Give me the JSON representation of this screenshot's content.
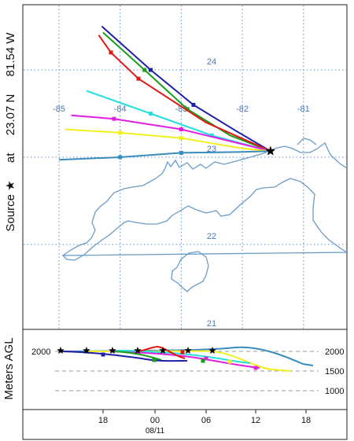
{
  "source": {
    "prefix": "Source",
    "star_glyph": "★",
    "at_word": "at",
    "lat": "23.07 N",
    "lon": "81.54 W"
  },
  "map": {
    "lon_labels": [
      "-85",
      "-84",
      "-83",
      "-82",
      "-81"
    ],
    "lat_labels": [
      "24",
      "23",
      "22",
      "21"
    ],
    "lon_values": [
      -85,
      -84,
      -83,
      -82,
      -81
    ],
    "lat_values": [
      24,
      23,
      22,
      21
    ],
    "grid_color": "#5b8fd0",
    "coast_color": "#6a9cc8"
  },
  "vertical_panel": {
    "ylabel": "Meters AGL",
    "levels": [
      "2000",
      "1500",
      "1000"
    ],
    "left_level": "2000",
    "time_ticks": [
      "18",
      "00",
      "06",
      "12",
      "18"
    ],
    "date_label": "08/11"
  },
  "trajectories": [
    {
      "color": "#1f1fa8",
      "points": [
        [
          -84.3,
          24.5
        ],
        [
          -83.5,
          24.0
        ],
        [
          -82.8,
          23.6
        ],
        [
          -82.1,
          23.3
        ],
        [
          -81.54,
          23.07
        ]
      ]
    },
    {
      "color": "#1a9e1a",
      "points": [
        [
          -84.28,
          24.43
        ],
        [
          -83.6,
          24.0
        ],
        [
          -82.9,
          23.55
        ],
        [
          -82.2,
          23.25
        ],
        [
          -81.54,
          23.07
        ]
      ]
    },
    {
      "color": "#e01818",
      "points": [
        [
          -84.35,
          24.4
        ],
        [
          -84.15,
          24.2
        ],
        [
          -83.7,
          23.9
        ],
        [
          -82.6,
          23.4
        ],
        [
          -81.54,
          23.07
        ]
      ]
    },
    {
      "color": "#22dede",
      "points": [
        [
          -84.55,
          23.76
        ],
        [
          -83.5,
          23.5
        ],
        [
          -82.5,
          23.25
        ],
        [
          -81.54,
          23.07
        ]
      ]
    },
    {
      "color": "#e020e0",
      "points": [
        [
          -84.8,
          23.48
        ],
        [
          -84.1,
          23.44
        ],
        [
          -83.0,
          23.32
        ],
        [
          -82.0,
          23.15
        ],
        [
          -81.54,
          23.07
        ]
      ]
    },
    {
      "color": "#f0f020",
      "points": [
        [
          -84.9,
          23.32
        ],
        [
          -84.0,
          23.28
        ],
        [
          -83.0,
          23.22
        ],
        [
          -82.0,
          23.1
        ],
        [
          -81.54,
          23.07
        ]
      ]
    },
    {
      "color": "#3a8cbf",
      "points": [
        [
          -85.0,
          22.97
        ],
        [
          -84.0,
          23.0
        ],
        [
          -83.0,
          23.05
        ],
        [
          -82.0,
          23.06
        ],
        [
          -81.54,
          23.07
        ]
      ]
    }
  ]
}
